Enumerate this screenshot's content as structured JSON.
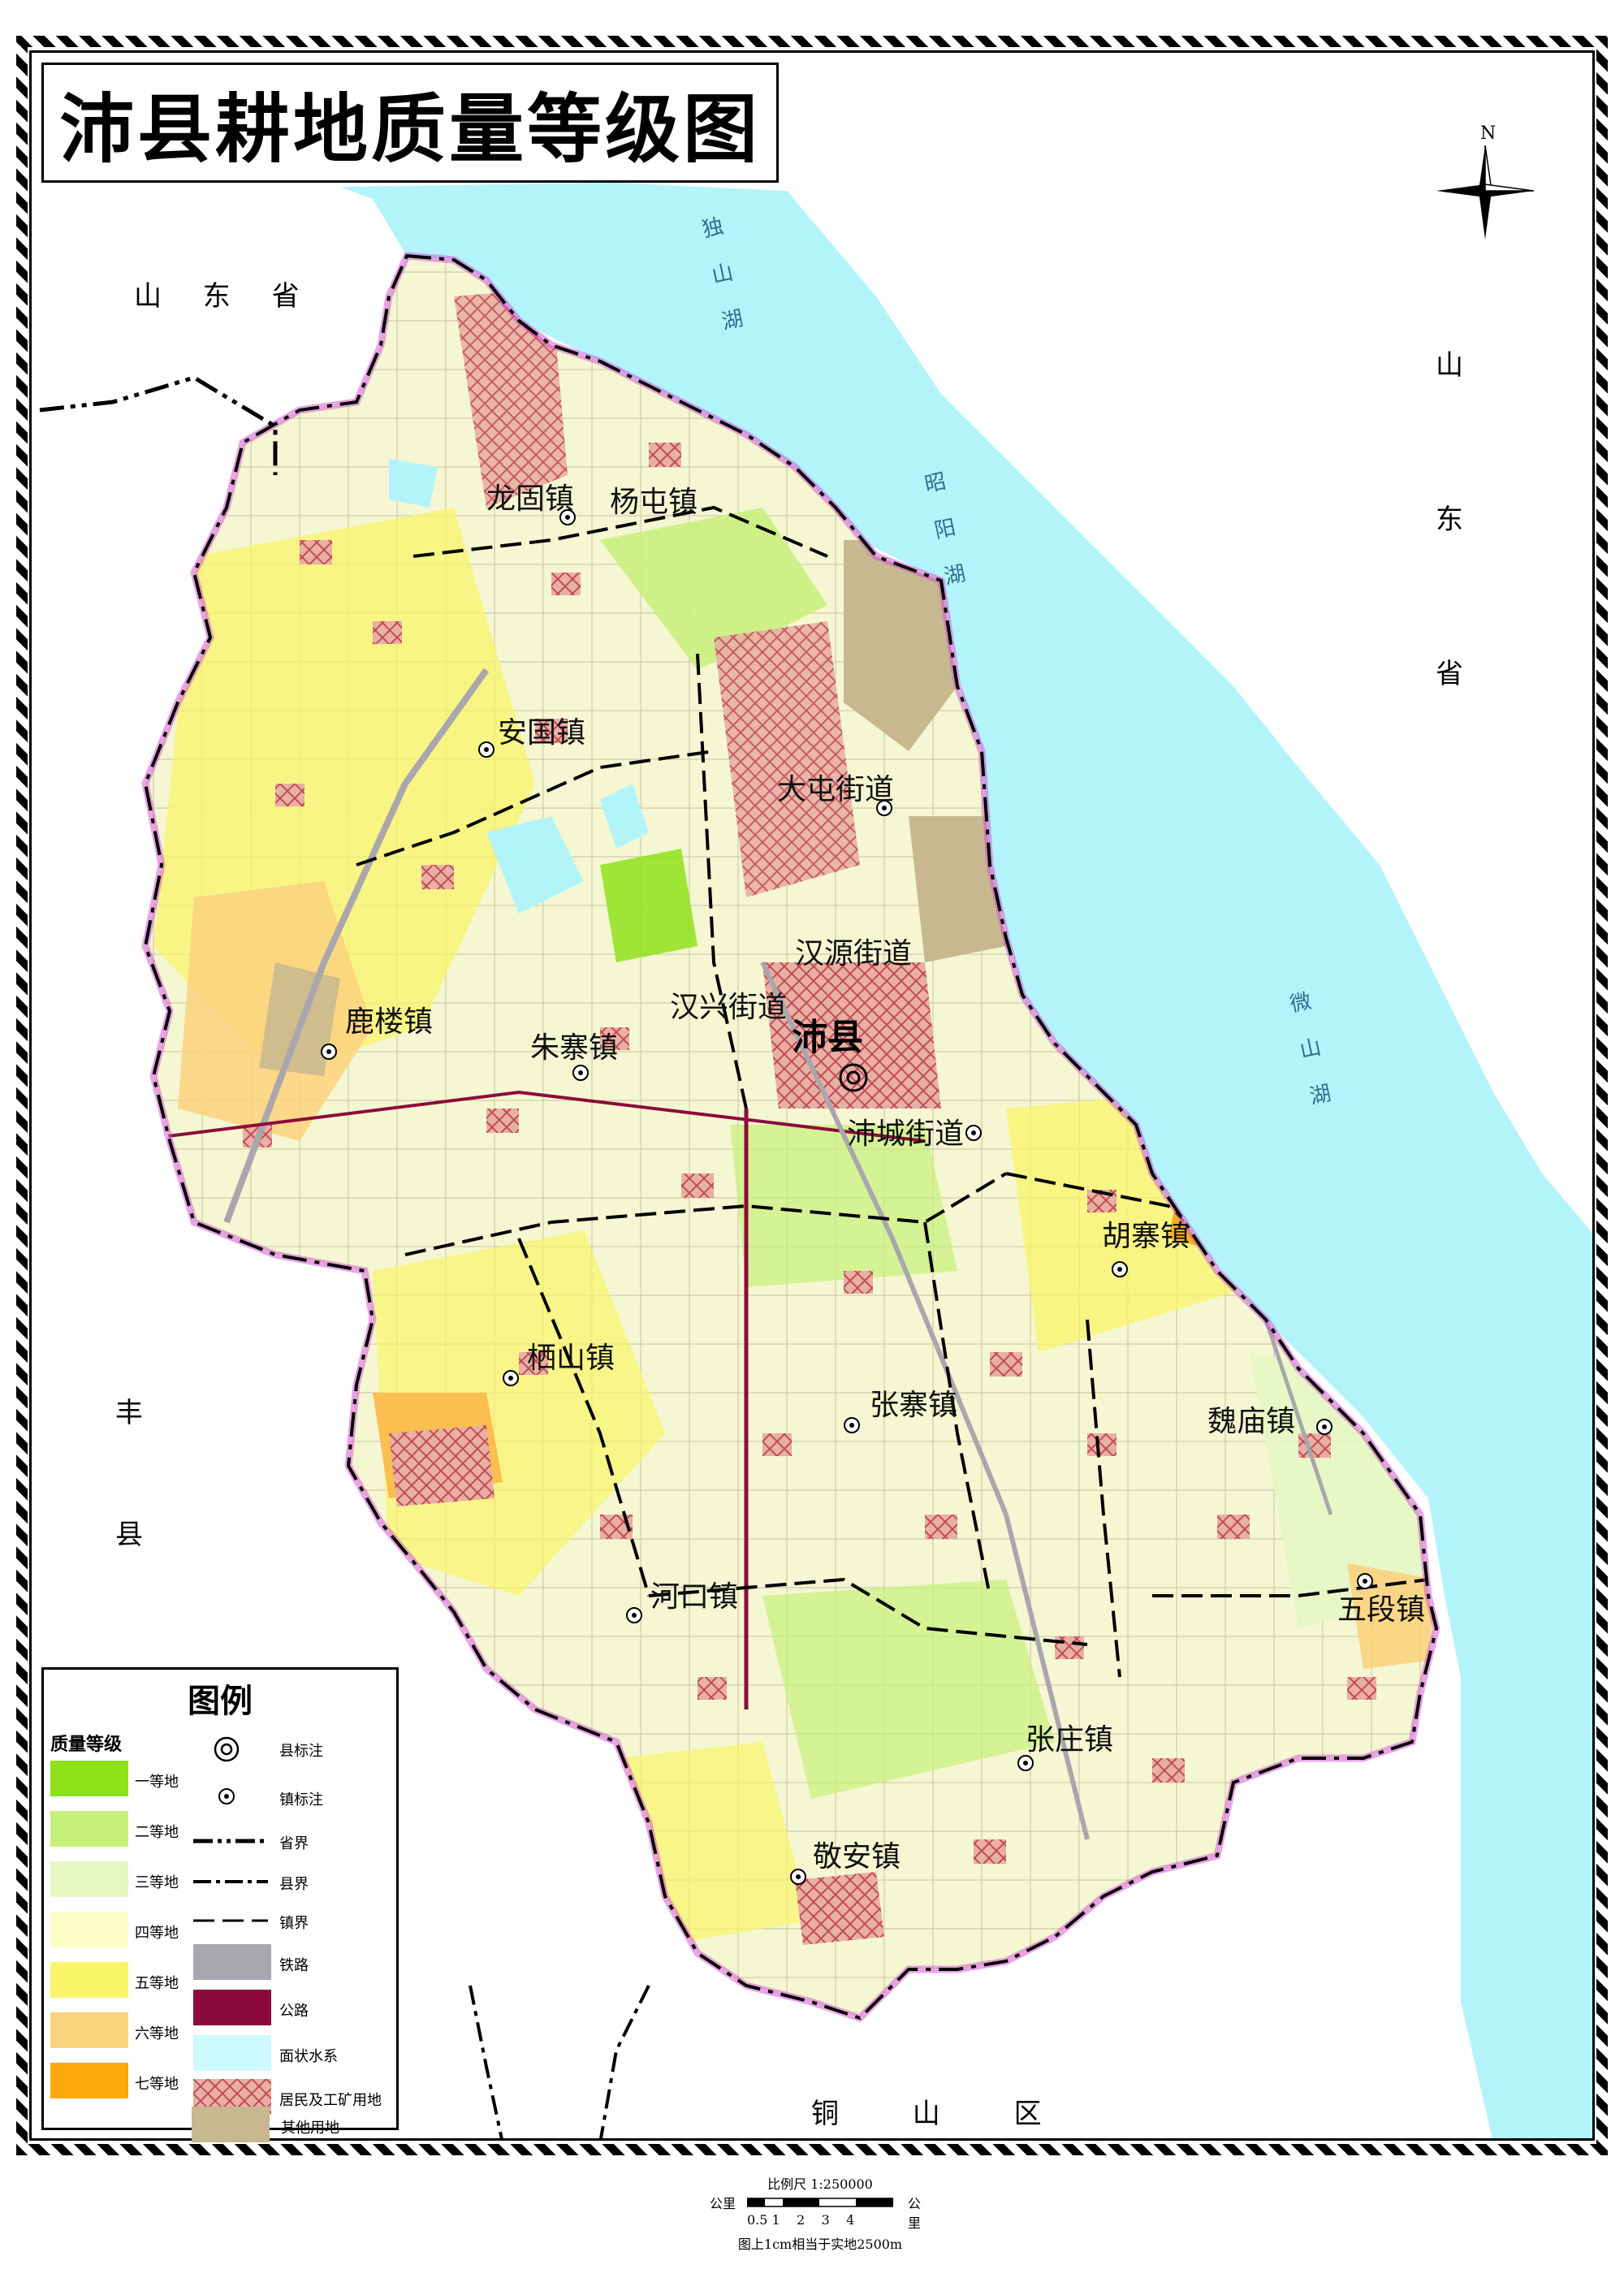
{
  "title": "沛县耕地质量等级图",
  "north_label": "N",
  "neighbors": {
    "shandong_left": "山 东 省",
    "shandong_right": [
      "山",
      "东",
      "省"
    ],
    "fengxian": [
      "丰",
      "县"
    ],
    "tongshan": "铜 山 区"
  },
  "lakes": {
    "dushan": [
      "独",
      "山",
      "湖"
    ],
    "zhaoyang": [
      "昭",
      "阳",
      "湖"
    ],
    "weishan": [
      "微",
      "山",
      "湖"
    ]
  },
  "county_seat": "沛县",
  "towns": [
    {
      "id": "longgu",
      "name": "龙固镇"
    },
    {
      "id": "yangtun",
      "name": "杨屯镇"
    },
    {
      "id": "anguo",
      "name": "安国镇"
    },
    {
      "id": "datun",
      "name": "大屯街道"
    },
    {
      "id": "hanyuan",
      "name": "汉源街道"
    },
    {
      "id": "luluo",
      "name": "鹿楼镇"
    },
    {
      "id": "zhuzhai",
      "name": "朱寨镇"
    },
    {
      "id": "hanxing",
      "name": "汉兴街道"
    },
    {
      "id": "peicheng",
      "name": "沛城街道"
    },
    {
      "id": "huzhai",
      "name": "胡寨镇"
    },
    {
      "id": "qishan",
      "name": "栖山镇"
    },
    {
      "id": "zhangzhai",
      "name": "张寨镇"
    },
    {
      "id": "weimiao",
      "name": "魏庙镇"
    },
    {
      "id": "hekou",
      "name": "河口镇"
    },
    {
      "id": "wuduan",
      "name": "五段镇"
    },
    {
      "id": "zhangzhuang",
      "name": "张庄镇"
    },
    {
      "id": "jingan",
      "name": "敬安镇"
    }
  ],
  "legend": {
    "title": "图例",
    "grade_heading": "质量等级",
    "grades": [
      {
        "label": "一等地",
        "color": "#8ee21a"
      },
      {
        "label": "二等地",
        "color": "#c7f07a"
      },
      {
        "label": "三等地",
        "color": "#e6f7c4"
      },
      {
        "label": "四等地",
        "color": "#fdfdc8"
      },
      {
        "label": "五等地",
        "color": "#f9f46a"
      },
      {
        "label": "六等地",
        "color": "#fbd27e"
      },
      {
        "label": "七等地",
        "color": "#fba80c"
      }
    ],
    "symbols": [
      {
        "label": "县标注",
        "icon": "double-circle-icon"
      },
      {
        "label": "镇标注",
        "icon": "dot-circle-icon"
      },
      {
        "label": "省界",
        "icon": "province-boundary-line"
      },
      {
        "label": "县界",
        "icon": "county-boundary-line"
      },
      {
        "label": "镇界",
        "icon": "town-boundary-line"
      },
      {
        "label": "铁路",
        "color": "#a9a6ad"
      },
      {
        "label": "公路",
        "color": "#8c0b3c"
      },
      {
        "label": "面状水系",
        "color": "#ccfaff"
      },
      {
        "label": "居民及工矿用地",
        "color": "#e89a8c"
      },
      {
        "label": "其他用地",
        "color": "#c7b88f"
      }
    ]
  },
  "scale": {
    "title": "比例尺  1:250000",
    "unit_left": "公里",
    "unit_right": "公里",
    "ticks": "0.5 1    2    3    4",
    "note": "图上1cm相当于实地2500m"
  },
  "colors": {
    "water": "#b3f4fa",
    "border": "#d44bd4"
  }
}
